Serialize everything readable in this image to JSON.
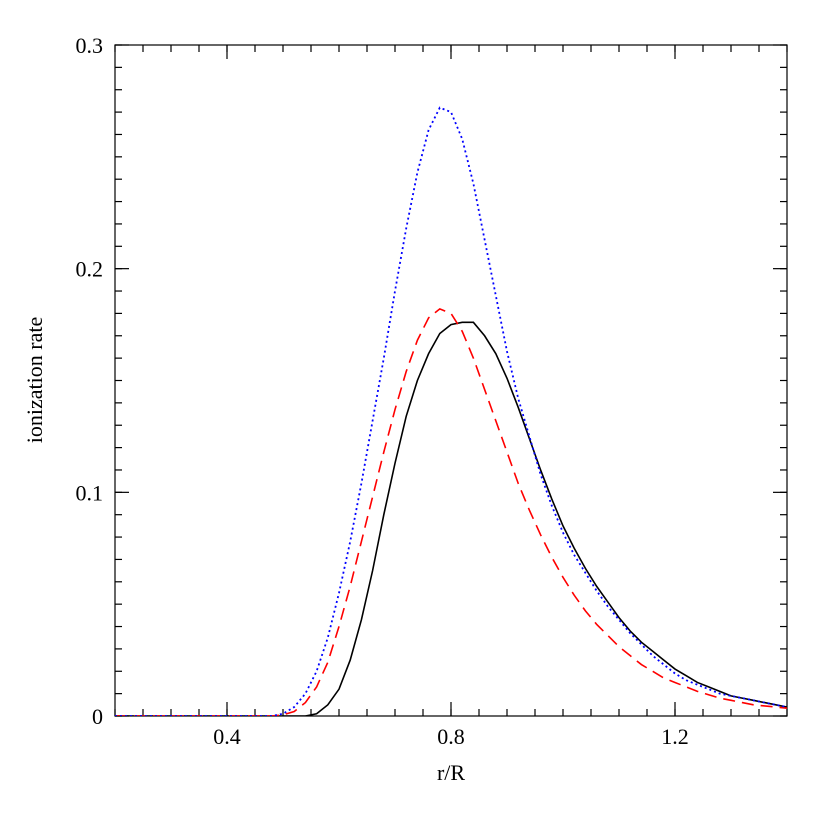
{
  "chart_data": {
    "type": "line",
    "xlabel": "r/R",
    "ylabel": "ionization rate",
    "xlim": [
      0.2,
      1.4
    ],
    "ylim": [
      0,
      0.3
    ],
    "xticks": [
      0.4,
      0.8,
      1.2
    ],
    "yticks": [
      0,
      0.1,
      0.2,
      0.3
    ],
    "x": [
      0.2,
      0.22,
      0.24,
      0.26,
      0.28,
      0.3,
      0.32,
      0.34,
      0.36,
      0.38,
      0.4,
      0.42,
      0.44,
      0.46,
      0.48,
      0.5,
      0.52,
      0.54,
      0.56,
      0.58,
      0.6,
      0.62,
      0.64,
      0.66,
      0.68,
      0.7,
      0.72,
      0.74,
      0.76,
      0.78,
      0.8,
      0.82,
      0.84,
      0.86,
      0.88,
      0.9,
      0.92,
      0.94,
      0.96,
      0.98,
      1.0,
      1.02,
      1.04,
      1.06,
      1.08,
      1.1,
      1.12,
      1.14,
      1.16,
      1.18,
      1.2,
      1.22,
      1.24,
      1.26,
      1.28,
      1.3,
      1.32,
      1.34,
      1.36,
      1.38,
      1.4
    ],
    "series": [
      {
        "color": "#000000",
        "dash": "solid",
        "values": [
          0,
          0,
          0,
          0,
          0,
          0,
          0,
          0,
          0,
          0,
          0,
          0,
          0,
          0,
          0,
          0,
          0,
          0,
          0.001,
          0.005,
          0.012,
          0.025,
          0.043,
          0.065,
          0.09,
          0.113,
          0.134,
          0.15,
          0.162,
          0.171,
          0.175,
          0.176,
          0.176,
          0.17,
          0.162,
          0.151,
          0.138,
          0.124,
          0.11,
          0.097,
          0.085,
          0.075,
          0.066,
          0.058,
          0.051,
          0.044,
          0.038,
          0.033,
          0.029,
          0.025,
          0.021,
          0.018,
          0.015,
          0.013,
          0.011,
          0.009,
          0.008,
          0.007,
          0.006,
          0.005,
          0.004
        ]
      },
      {
        "color": "#ff0000",
        "dash": "dashed",
        "values": [
          0,
          0,
          0,
          0,
          0,
          0,
          0,
          0,
          0,
          0,
          0,
          0,
          0,
          0,
          0,
          0.0005,
          0.002,
          0.006,
          0.013,
          0.024,
          0.04,
          0.058,
          0.078,
          0.098,
          0.118,
          0.137,
          0.154,
          0.168,
          0.178,
          0.182,
          0.18,
          0.172,
          0.16,
          0.146,
          0.132,
          0.118,
          0.104,
          0.092,
          0.081,
          0.071,
          0.062,
          0.054,
          0.047,
          0.041,
          0.036,
          0.031,
          0.027,
          0.023,
          0.02,
          0.017,
          0.015,
          0.013,
          0.011,
          0.0095,
          0.008,
          0.007,
          0.006,
          0.005,
          0.0045,
          0.004,
          0.0035
        ]
      },
      {
        "color": "#0000ff",
        "dash": "dotted",
        "values": [
          0,
          0,
          0,
          0,
          0,
          0,
          0,
          0,
          0,
          0,
          0,
          0,
          0,
          0,
          0,
          0.001,
          0.004,
          0.01,
          0.02,
          0.035,
          0.055,
          0.078,
          0.104,
          0.132,
          0.16,
          0.19,
          0.218,
          0.243,
          0.262,
          0.272,
          0.27,
          0.258,
          0.238,
          0.213,
          0.188,
          0.163,
          0.142,
          0.125,
          0.108,
          0.094,
          0.082,
          0.072,
          0.064,
          0.056,
          0.049,
          0.043,
          0.037,
          0.032,
          0.027,
          0.023,
          0.019,
          0.016,
          0.014,
          0.012,
          0.01,
          0.009,
          0.008,
          0.007,
          0.006,
          0.005,
          0.004
        ]
      }
    ]
  }
}
